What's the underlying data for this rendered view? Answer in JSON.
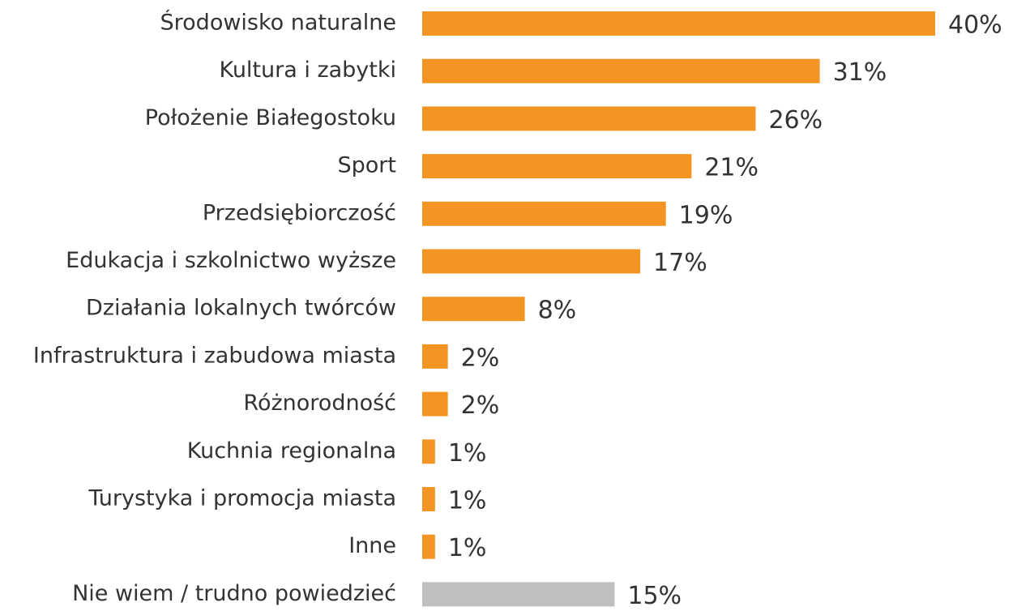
{
  "chart_data": {
    "type": "bar",
    "orientation": "horizontal",
    "categories": [
      "Środowisko naturalne",
      "Kultura i zabytki",
      "Położenie Białegostoku",
      "Sport",
      "Przedsiębiorczość",
      "Edukacja i szkolnictwo wyższe",
      "Działania lokalnych twórców",
      "Infrastruktura i zabudowa miasta",
      "Różnorodność",
      "Kuchnia regionalna",
      "Turystyka i promocja miasta",
      "Inne",
      "Nie wiem / trudno powiedzieć"
    ],
    "values": [
      40,
      31,
      26,
      21,
      19,
      17,
      8,
      2,
      2,
      1,
      1,
      1,
      15
    ],
    "value_labels": [
      "40%",
      "31%",
      "26%",
      "21%",
      "19%",
      "17%",
      "8%",
      "2%",
      "2%",
      "1%",
      "1%",
      "1%",
      "15%"
    ],
    "colors": [
      "#f39423",
      "#f39423",
      "#f39423",
      "#f39423",
      "#f39423",
      "#f39423",
      "#f39423",
      "#f39423",
      "#f39423",
      "#f39423",
      "#f39423",
      "#f39423",
      "#bfbfbf"
    ]
  }
}
